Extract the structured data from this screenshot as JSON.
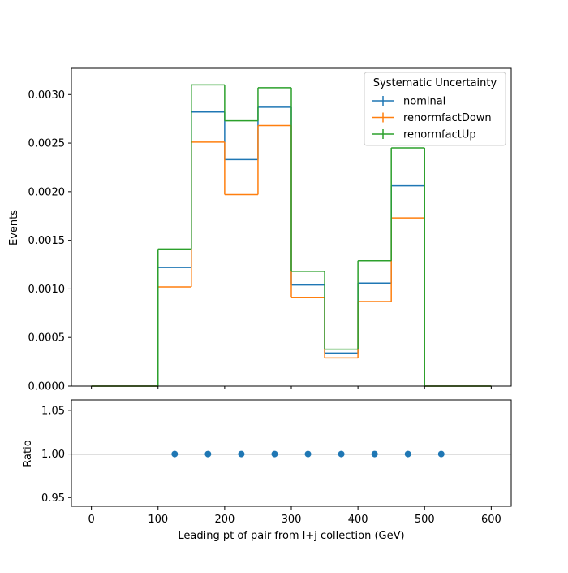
{
  "chart_data": [
    {
      "type": "line",
      "panel": "main",
      "ylabel": "Events",
      "xlim": [
        -30,
        630
      ],
      "ylim": [
        0,
        0.00327
      ],
      "yticks": [
        0.0,
        0.0005,
        0.001,
        0.0015,
        0.002,
        0.0025,
        0.003
      ],
      "ytick_labels": [
        "0.0000",
        "0.0005",
        "0.0010",
        "0.0015",
        "0.0020",
        "0.0025",
        "0.0030"
      ],
      "bin_edges": [
        0,
        100,
        150,
        200,
        250,
        300,
        350,
        400,
        450,
        500,
        600
      ],
      "legend": {
        "title": "Systematic Uncertainty",
        "position": "top-right"
      },
      "series": [
        {
          "name": "nominal",
          "color": "#1f77b4",
          "values": [
            0.0,
            0.00122,
            0.00282,
            0.00233,
            0.00287,
            0.00104,
            0.00034,
            0.00106,
            0.00206,
            0.0
          ]
        },
        {
          "name": "renormfactDown",
          "color": "#ff7f0e",
          "values": [
            0.0,
            0.00102,
            0.00251,
            0.00197,
            0.00268,
            0.00091,
            0.00029,
            0.00087,
            0.00173,
            0.0
          ]
        },
        {
          "name": "renormfactUp",
          "color": "#2ca02c",
          "values": [
            0.0,
            0.00141,
            0.0031,
            0.00273,
            0.00307,
            0.00118,
            0.00038,
            0.00129,
            0.00245,
            0.0
          ]
        }
      ]
    },
    {
      "type": "scatter",
      "panel": "ratio",
      "ylabel": "Ratio",
      "xlabel": "Leading pt of pair from l+j collection (GeV)",
      "xlim": [
        -30,
        630
      ],
      "ylim": [
        0.94,
        1.062
      ],
      "xticks": [
        0,
        100,
        200,
        300,
        400,
        500,
        600
      ],
      "xtick_labels": [
        "0",
        "100",
        "200",
        "300",
        "400",
        "500",
        "600"
      ],
      "yticks": [
        0.95,
        1.0,
        1.05
      ],
      "ytick_labels": [
        "0.95",
        "1.00",
        "1.05"
      ],
      "reference_line": 1.0,
      "point_color": "#1f77b4",
      "x": [
        125,
        175,
        225,
        275,
        325,
        375,
        425,
        475,
        525
      ],
      "y": [
        1.0,
        1.0,
        1.0,
        1.0,
        1.0,
        1.0,
        1.0,
        1.0,
        1.0
      ]
    }
  ]
}
